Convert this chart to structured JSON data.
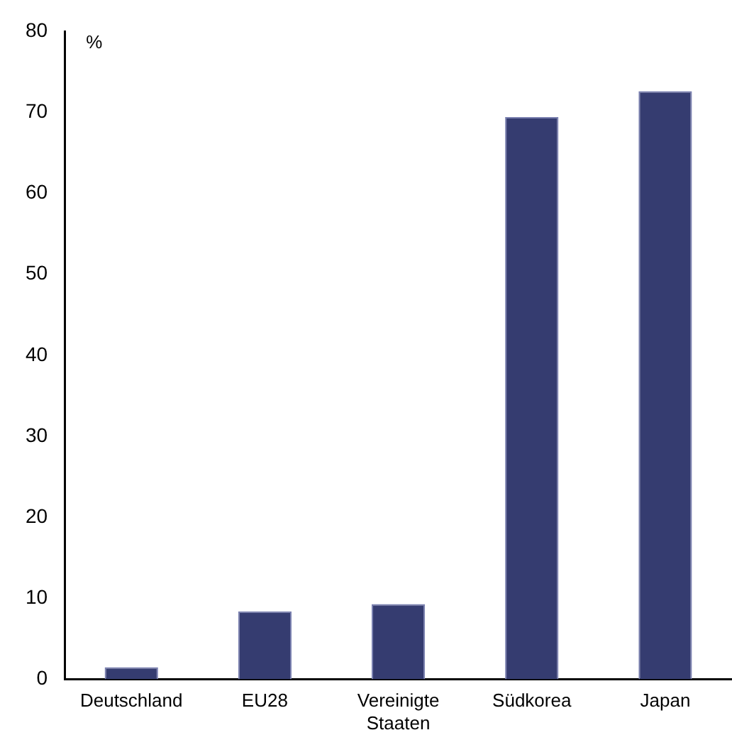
{
  "chart_data": {
    "type": "bar",
    "ylabel": "%",
    "categories": [
      "Deutschland",
      "EU28",
      "Vereinigte Staaten",
      "Südkorea",
      "Japan"
    ],
    "values": [
      1.5,
      8.4,
      9.3,
      69.4,
      72.6
    ],
    "color": "#353c70",
    "ylim": [
      0,
      80
    ],
    "yticks": [
      0,
      10,
      20,
      30,
      40,
      50,
      60,
      70,
      80
    ],
    "grid": false,
    "legend": false
  }
}
